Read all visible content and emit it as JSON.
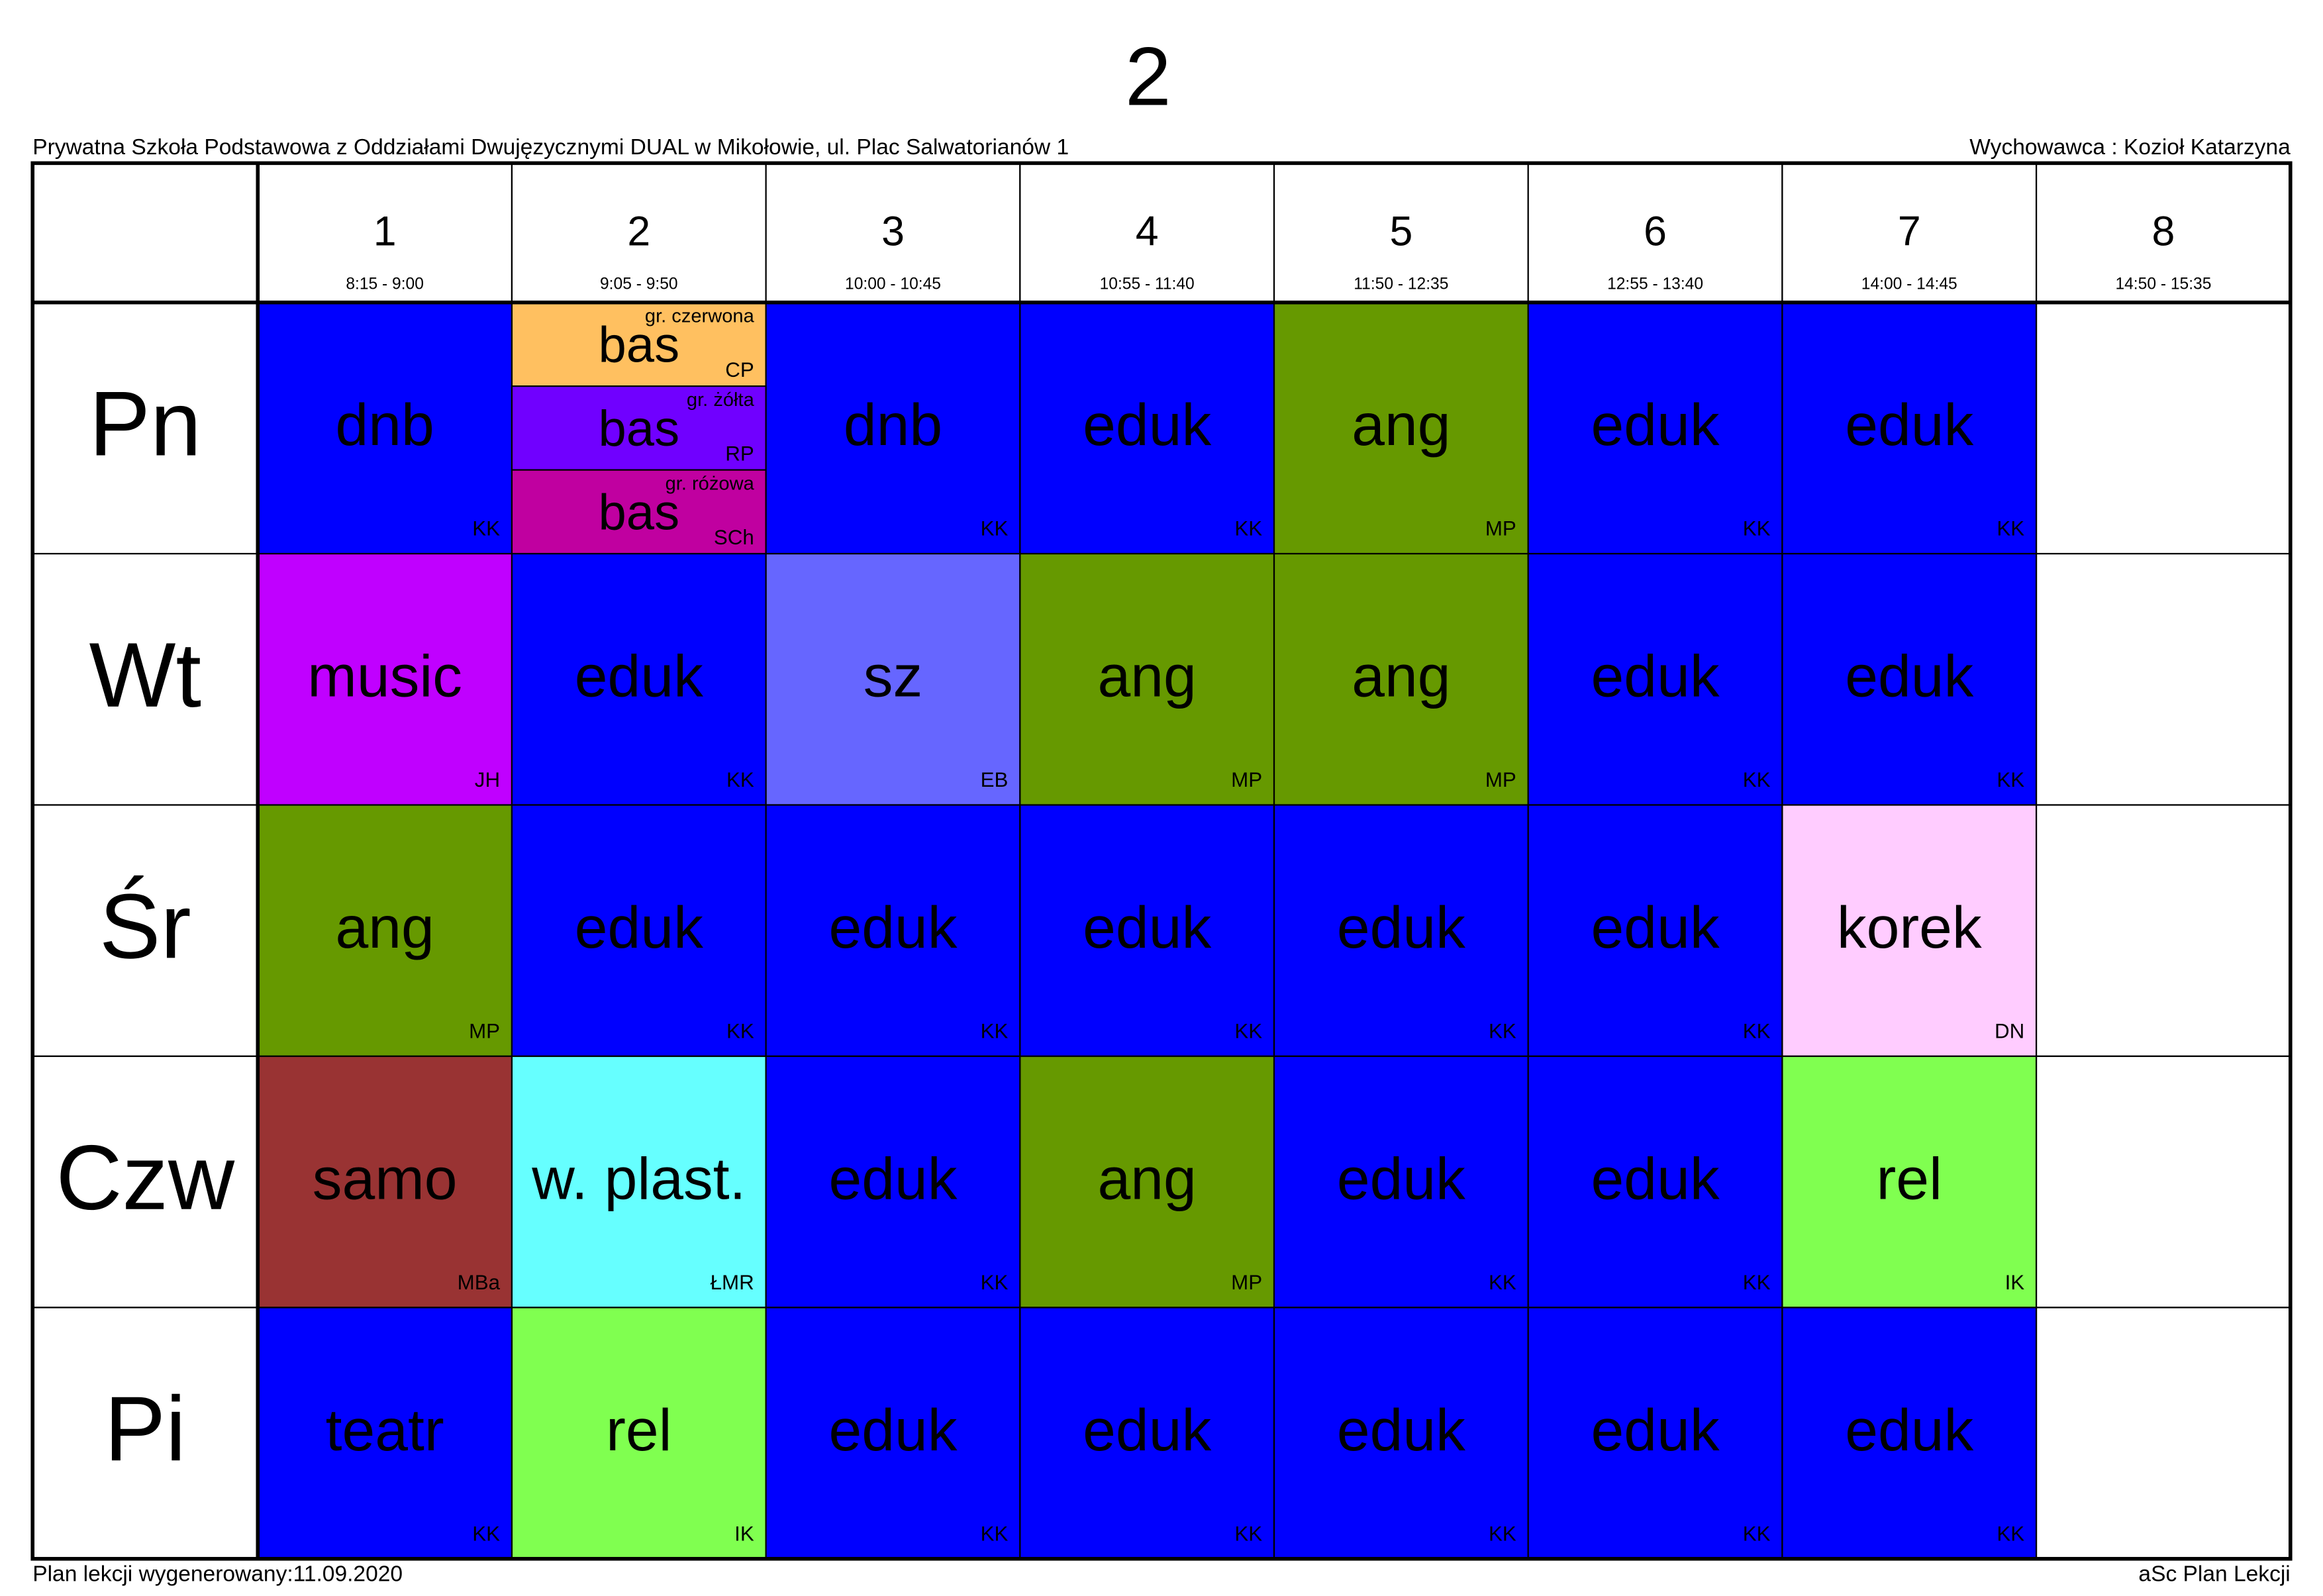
{
  "header": {
    "title": "2",
    "school": "Prywatna Szkoła Podstawowa z Oddziałami Dwujęzycznymi DUAL w Mikołowie, ul. Plac Salwatorianów 1",
    "teacher": "Wychowawca : Kozioł Katarzyna"
  },
  "periods": [
    {
      "number": "1",
      "time": "8:15 - 9:00"
    },
    {
      "number": "2",
      "time": "9:05 - 9:50"
    },
    {
      "number": "3",
      "time": "10:00 - 10:45"
    },
    {
      "number": "4",
      "time": "10:55 - 11:40"
    },
    {
      "number": "5",
      "time": "11:50 - 12:35"
    },
    {
      "number": "6",
      "time": "12:55 - 13:40"
    },
    {
      "number": "7",
      "time": "14:00 - 14:45"
    },
    {
      "number": "8",
      "time": "14:50 - 15:35"
    }
  ],
  "days": [
    {
      "name": "Pn",
      "lessons": [
        {
          "subject": "dnb",
          "teacher": "KK",
          "color": "#0000ff"
        },
        {
          "groups": [
            {
              "group": "gr. czerwona",
              "subject": "bas",
              "teacher": "CP",
              "color": "#ffc060"
            },
            {
              "group": "gr. żółta",
              "subject": "bas",
              "teacher": "RP",
              "color": "#7000ff"
            },
            {
              "group": "gr. różowa",
              "subject": "bas",
              "teacher": "SCh",
              "color": "#c000a0"
            }
          ]
        },
        {
          "subject": "dnb",
          "teacher": "KK",
          "color": "#0000ff"
        },
        {
          "subject": "eduk",
          "teacher": "KK",
          "color": "#0000ff"
        },
        {
          "subject": "ang",
          "teacher": "MP",
          "color": "#669900"
        },
        {
          "subject": "eduk",
          "teacher": "KK",
          "color": "#0000ff"
        },
        {
          "subject": "eduk",
          "teacher": "KK",
          "color": "#0000ff"
        },
        null
      ]
    },
    {
      "name": "Wt",
      "lessons": [
        {
          "subject": "music",
          "teacher": "JH",
          "color": "#c000ff"
        },
        {
          "subject": "eduk",
          "teacher": "KK",
          "color": "#0000ff"
        },
        {
          "subject": "sz",
          "teacher": "EB",
          "color": "#6666ff"
        },
        {
          "subject": "ang",
          "teacher": "MP",
          "color": "#669900"
        },
        {
          "subject": "ang",
          "teacher": "MP",
          "color": "#669900"
        },
        {
          "subject": "eduk",
          "teacher": "KK",
          "color": "#0000ff"
        },
        {
          "subject": "eduk",
          "teacher": "KK",
          "color": "#0000ff"
        },
        null
      ]
    },
    {
      "name": "Śr",
      "lessons": [
        {
          "subject": "ang",
          "teacher": "MP",
          "color": "#669900"
        },
        {
          "subject": "eduk",
          "teacher": "KK",
          "color": "#0000ff"
        },
        {
          "subject": "eduk",
          "teacher": "KK",
          "color": "#0000ff"
        },
        {
          "subject": "eduk",
          "teacher": "KK",
          "color": "#0000ff"
        },
        {
          "subject": "eduk",
          "teacher": "KK",
          "color": "#0000ff"
        },
        {
          "subject": "eduk",
          "teacher": "KK",
          "color": "#0000ff"
        },
        {
          "subject": "korek",
          "teacher": "DN",
          "color": "#ffccff"
        },
        null
      ]
    },
    {
      "name": "Czw",
      "lessons": [
        {
          "subject": "samo",
          "teacher": "MBa",
          "color": "#993333"
        },
        {
          "subject": "w. plast.",
          "teacher": "ŁMR",
          "color": "#66ffff"
        },
        {
          "subject": "eduk",
          "teacher": "KK",
          "color": "#0000ff"
        },
        {
          "subject": "ang",
          "teacher": "MP",
          "color": "#669900"
        },
        {
          "subject": "eduk",
          "teacher": "KK",
          "color": "#0000ff"
        },
        {
          "subject": "eduk",
          "teacher": "KK",
          "color": "#0000ff"
        },
        {
          "subject": "rel",
          "teacher": "IK",
          "color": "#80ff50"
        },
        null
      ]
    },
    {
      "name": "Pi",
      "lessons": [
        {
          "subject": "teatr",
          "teacher": "KK",
          "color": "#0000ff"
        },
        {
          "subject": "rel",
          "teacher": "IK",
          "color": "#80ff50"
        },
        {
          "subject": "eduk",
          "teacher": "KK",
          "color": "#0000ff"
        },
        {
          "subject": "eduk",
          "teacher": "KK",
          "color": "#0000ff"
        },
        {
          "subject": "eduk",
          "teacher": "KK",
          "color": "#0000ff"
        },
        {
          "subject": "eduk",
          "teacher": "KK",
          "color": "#0000ff"
        },
        {
          "subject": "eduk",
          "teacher": "KK",
          "color": "#0000ff"
        },
        null
      ]
    }
  ],
  "footer": {
    "generated": "Plan lekcji wygenerowany:11.09.2020",
    "app": "aSc Plan Lekcji"
  }
}
